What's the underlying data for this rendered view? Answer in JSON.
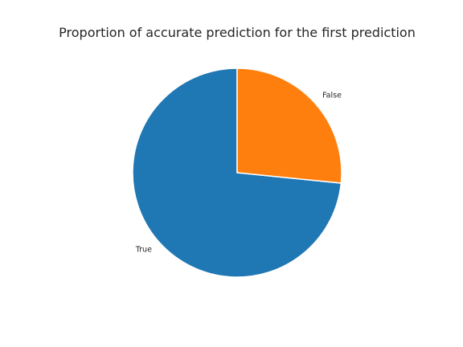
{
  "chart_data": {
    "type": "pie",
    "title": "Proportion of accurate prediction for the first prediction",
    "categories": [
      "True",
      "False"
    ],
    "values": [
      73.4,
      26.6
    ],
    "colors": [
      "#1f77b4",
      "#ff7f0e"
    ],
    "start_angle_deg": 90,
    "direction": "counterclockwise",
    "legend": "none"
  }
}
